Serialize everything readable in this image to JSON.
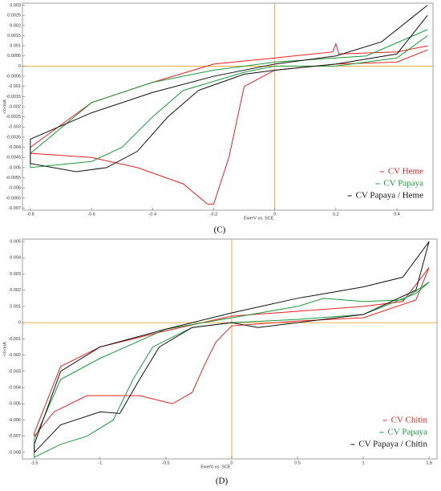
{
  "chart_data": [
    {
      "type": "line",
      "caption": "(C)",
      "x_label": "Ewe/V vs. SCE",
      "y_label": "<I>/mA",
      "xlim": [
        -0.826,
        0.518
      ],
      "ylim": [
        -0.0071,
        0.0031
      ],
      "xticks": [
        -0.8,
        -0.6,
        -0.4,
        -0.2,
        0,
        0.2,
        0.4
      ],
      "yticks": [
        0.003,
        0.0025,
        0.002,
        0.0015,
        0.001,
        0.0005,
        0,
        -0.0005,
        -0.001,
        -0.0015,
        -0.002,
        -0.0025,
        -0.003,
        -0.0035,
        -0.004,
        -0.0045,
        -0.005,
        -0.0055,
        -0.006,
        -0.0065,
        -0.007
      ],
      "zero_line_color": "#f0a030",
      "series": [
        {
          "name": "CV Heme",
          "color": "#ee2222",
          "x": [
            0.5,
            0.4,
            0.21,
            0.2,
            0.19,
            0,
            -0.2,
            -0.4,
            -0.6,
            -0.8,
            -0.8,
            -0.6,
            -0.45,
            -0.3,
            -0.22,
            -0.2,
            -0.15,
            -0.1,
            0,
            0.2,
            0.4,
            0.5
          ],
          "values": [
            0.001,
            0.0007,
            0.0006,
            0.0011,
            0.0007,
            0.0004,
            0.0001,
            -0.0008,
            -0.0018,
            -0.004,
            -0.0043,
            -0.0045,
            -0.005,
            -0.0058,
            -0.0068,
            -0.0068,
            -0.0045,
            -0.001,
            -0.0002,
            0.0001,
            0.0002,
            0.0008
          ]
        },
        {
          "name": "CV Papaya",
          "color": "#1a9a3a",
          "x": [
            0.5,
            0.3,
            0,
            -0.2,
            -0.4,
            -0.6,
            -0.8,
            -0.8,
            -0.6,
            -0.5,
            -0.4,
            -0.3,
            -0.1,
            0,
            0.2,
            0.4,
            0.5
          ],
          "values": [
            0.0018,
            0.0005,
            0.0002,
            -0.0002,
            -0.0008,
            -0.0018,
            -0.0043,
            -0.005,
            -0.0047,
            -0.004,
            -0.0025,
            -0.0012,
            -0.0003,
            0,
            0,
            0.0004,
            0.0015
          ]
        },
        {
          "name": "CV Papaya / Heme",
          "color": "#111111",
          "x": [
            0.5,
            0.35,
            0.2,
            0,
            -0.2,
            -0.4,
            -0.6,
            -0.8,
            -0.8,
            -0.65,
            -0.55,
            -0.45,
            -0.35,
            -0.25,
            -0.1,
            0,
            0.2,
            0.4,
            0.5
          ],
          "values": [
            0.003,
            0.0012,
            0.0005,
            0.0001,
            -0.0005,
            -0.0013,
            -0.0023,
            -0.0036,
            -0.0048,
            -0.0052,
            -0.005,
            -0.0042,
            -0.0025,
            -0.0012,
            -0.0004,
            -0.0002,
            0.0001,
            0.0006,
            0.0025
          ]
        }
      ]
    },
    {
      "type": "line",
      "caption": "(D)",
      "x_label": "Ewe/V vs. SCE",
      "y_label": "<I>/mA",
      "xlim": [
        -1.59,
        1.56
      ],
      "ylim": [
        -0.0084,
        0.00515
      ],
      "xticks": [
        -1.5,
        -1,
        -0.5,
        0,
        0.5,
        1,
        1.5
      ],
      "yticks": [
        0.005,
        0.004,
        0.003,
        0.002,
        0.001,
        0,
        -0.001,
        -0.002,
        -0.003,
        -0.004,
        -0.005,
        -0.006,
        -0.007,
        -0.008
      ],
      "zero_line_color": "#f0a030",
      "series": [
        {
          "name": "CV Chitin",
          "color": "#ee2222",
          "x": [
            1.5,
            1.3,
            1,
            0.5,
            0,
            -0.5,
            -1,
            -1.3,
            -1.5,
            -1.5,
            -1.35,
            -1.1,
            -0.7,
            -0.45,
            -0.3,
            -0.2,
            -0.12,
            0,
            0.5,
            1,
            1.4,
            1.5
          ],
          "values": [
            0.0034,
            0.0013,
            0.001,
            0.0007,
            0.0004,
            -0.0005,
            -0.0015,
            -0.0027,
            -0.0068,
            -0.007,
            -0.0055,
            -0.0045,
            -0.0045,
            -0.005,
            -0.0043,
            -0.0025,
            -0.0012,
            -0.0002,
            0.0001,
            0.0003,
            0.0014,
            0.0034
          ]
        },
        {
          "name": "CV Papaya",
          "color": "#1a9a3a",
          "x": [
            1.5,
            1.3,
            1,
            0.7,
            0.5,
            0,
            -0.5,
            -1,
            -1.3,
            -1.5,
            -1.5,
            -1.3,
            -1.1,
            -0.9,
            -0.75,
            -0.6,
            -0.3,
            0,
            0.5,
            1,
            1.4,
            1.5
          ],
          "values": [
            0.0025,
            0.0014,
            0.0013,
            0.0015,
            0.001,
            0.0003,
            -0.0004,
            -0.0022,
            -0.0035,
            -0.0072,
            -0.0083,
            -0.0075,
            -0.007,
            -0.006,
            -0.0035,
            -0.0015,
            -0.0003,
            0,
            0.0002,
            0.0005,
            0.0018,
            0.0025
          ]
        },
        {
          "name": "CV Papaya / Chitin",
          "color": "#111111",
          "x": [
            1.5,
            1.3,
            1,
            0.5,
            0,
            -0.5,
            -1,
            -1.3,
            -1.5,
            -1.5,
            -1.3,
            -1,
            -0.85,
            -0.7,
            -0.55,
            -0.3,
            0,
            0.2,
            0.5,
            1,
            1.4,
            1.5
          ],
          "values": [
            0.005,
            0.0028,
            0.0022,
            0.0015,
            0.0006,
            -0.0004,
            -0.0015,
            -0.003,
            -0.0075,
            -0.008,
            -0.0063,
            -0.0055,
            -0.0056,
            -0.0035,
            -0.0015,
            -0.0003,
            0,
            -0.0003,
            0,
            0.0005,
            0.002,
            0.005
          ]
        }
      ]
    }
  ]
}
